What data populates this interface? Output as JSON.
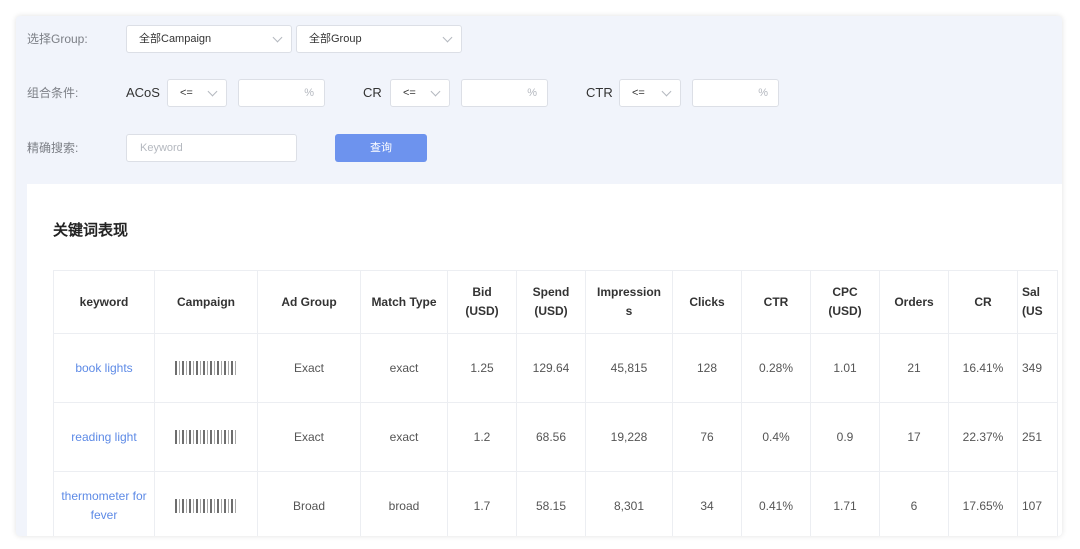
{
  "filters": {
    "group_label": "选择Group:",
    "campaign_select": "全部Campaign",
    "group_select": "全部Group",
    "combo_label": "组合条件:",
    "acos_label": "ACoS",
    "acos_op": "<=",
    "acos_unit": "%",
    "cr_label": "CR",
    "cr_op": "<=",
    "cr_unit": "%",
    "ctr_label": "CTR",
    "ctr_op": "<=",
    "ctr_unit": "%",
    "search_label": "精确搜索:",
    "keyword_placeholder": "Keyword",
    "query_button": "查询"
  },
  "panel": {
    "title": "关键词表现"
  },
  "table": {
    "headers": {
      "keyword": "keyword",
      "campaign": "Campaign",
      "ad_group": "Ad Group",
      "match_type": "Match Type",
      "bid": "Bid\n(USD)",
      "spend": "Spend\n(USD)",
      "impressions": "Impression\ns",
      "clicks": "Clicks",
      "ctr": "CTR",
      "cpc": "CPC\n(USD)",
      "orders": "Orders",
      "cr": "CR",
      "sales": "Sal\n(US"
    },
    "rows": [
      {
        "keyword": "book lights",
        "ad_group": "Exact",
        "match_type": "exact",
        "bid": "1.25",
        "spend": "129.64",
        "impressions": "45,815",
        "clicks": "128",
        "ctr": "0.28%",
        "cpc": "1.01",
        "orders": "21",
        "cr": "16.41%",
        "sales": "349"
      },
      {
        "keyword": "reading light",
        "ad_group": "Exact",
        "match_type": "exact",
        "bid": "1.2",
        "spend": "68.56",
        "impressions": "19,228",
        "clicks": "76",
        "ctr": "0.4%",
        "cpc": "0.9",
        "orders": "17",
        "cr": "22.37%",
        "sales": "251"
      },
      {
        "keyword": "thermometer for fever",
        "ad_group": "Broad",
        "match_type": "broad",
        "bid": "1.7",
        "spend": "58.15",
        "impressions": "8,301",
        "clicks": "34",
        "ctr": "0.41%",
        "cpc": "1.71",
        "orders": "6",
        "cr": "17.65%",
        "sales": "107"
      }
    ]
  }
}
